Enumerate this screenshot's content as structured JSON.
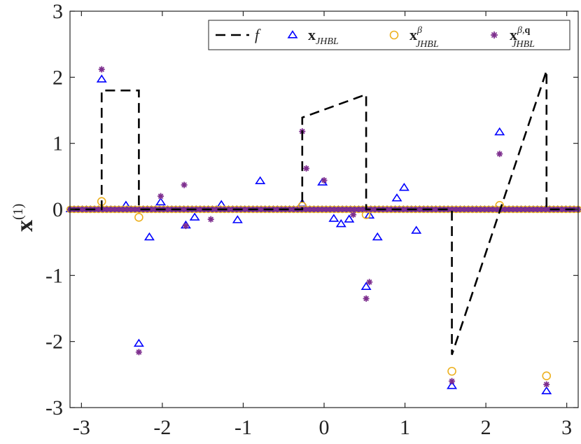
{
  "chart_data": {
    "type": "scatter",
    "ylabel": "x(1)",
    "ylabel_base": "x",
    "ylabel_sup": "(1)",
    "xlim": [
      -3.1416,
      3.1416
    ],
    "ylim": [
      -3,
      3
    ],
    "x_ticks": [
      -3,
      -2,
      -1,
      0,
      1,
      2,
      3
    ],
    "x_tick_labels": [
      "-3",
      "-2",
      "-1",
      "0",
      "1",
      "2",
      "3"
    ],
    "y_ticks": [
      -3,
      -2,
      -1,
      0,
      1,
      2,
      3
    ],
    "y_tick_labels": [
      "-3",
      "-2",
      "-1",
      "0",
      "1",
      "2",
      "3"
    ],
    "grid": false,
    "legend_position": "top-right",
    "legend": {
      "f": "f",
      "x_base": "x",
      "x_sub": "JHBL",
      "beta": "β",
      "beta_q": "β,",
      "q": "q"
    },
    "colors": {
      "f": "#000000",
      "x_JHBL": "#0000ff",
      "x_beta": "#edb120",
      "x_beta_q": "#7e2f8e",
      "axis": "#262626"
    },
    "series": [
      {
        "key": "f",
        "style": "dashed-line",
        "segments": [
          [
            [
              -3.14,
              0
            ],
            [
              -2.75,
              0
            ],
            [
              -2.75,
              1.8
            ],
            [
              -2.29,
              1.8
            ],
            [
              -2.29,
              0
            ],
            [
              -0.27,
              0
            ],
            [
              -0.27,
              1.39
            ],
            [
              0.52,
              1.74
            ],
            [
              0.52,
              0
            ],
            [
              1.58,
              0
            ],
            [
              1.58,
              -2.2
            ],
            [
              2.75,
              2.1
            ],
            [
              2.75,
              0
            ],
            [
              3.14,
              0
            ]
          ]
        ]
      },
      {
        "key": "x_JHBL",
        "style": "triangle",
        "outliers": [
          [
            -2.75,
            1.97
          ],
          [
            -2.29,
            -2.03
          ],
          [
            -2.16,
            -0.42
          ],
          [
            -2.02,
            0.11
          ],
          [
            -1.6,
            -0.12
          ],
          [
            -1.71,
            -0.24
          ],
          [
            -1.27,
            0.07
          ],
          [
            -0.79,
            0.43
          ],
          [
            -1.07,
            -0.16
          ],
          [
            -2.45,
            0.06
          ],
          [
            -0.27,
            0.09
          ],
          [
            -0.02,
            0.41
          ],
          [
            0.12,
            -0.14
          ],
          [
            0.21,
            -0.22
          ],
          [
            0.31,
            -0.15
          ],
          [
            0.52,
            -1.17
          ],
          [
            0.56,
            -0.09
          ],
          [
            0.66,
            -0.42
          ],
          [
            0.9,
            0.17
          ],
          [
            0.99,
            0.33
          ],
          [
            1.14,
            -0.32
          ],
          [
            1.58,
            -2.67
          ],
          [
            2.17,
            1.17
          ],
          [
            2.75,
            -2.75
          ]
        ]
      },
      {
        "key": "x_beta",
        "style": "circle",
        "outliers": [
          [
            -2.75,
            0.12
          ],
          [
            -2.29,
            -0.12
          ],
          [
            -0.27,
            0.05
          ],
          [
            0.52,
            -0.08
          ],
          [
            1.58,
            -2.45
          ],
          [
            2.17,
            0.06
          ],
          [
            2.75,
            -2.52
          ]
        ]
      },
      {
        "key": "x_beta_q",
        "style": "star",
        "outliers": [
          [
            -2.75,
            2.12
          ],
          [
            -2.29,
            -2.16
          ],
          [
            -2.02,
            0.2
          ],
          [
            -1.73,
            0.37
          ],
          [
            -1.71,
            -0.25
          ],
          [
            -1.4,
            -0.15
          ],
          [
            -0.27,
            1.18
          ],
          [
            -0.22,
            0.62
          ],
          [
            0,
            0.44
          ],
          [
            0.36,
            -0.08
          ],
          [
            0.52,
            -1.35
          ],
          [
            0.56,
            -1.1
          ],
          [
            1.58,
            -2.6
          ],
          [
            2.17,
            0.84
          ],
          [
            2.75,
            -2.65
          ]
        ]
      }
    ],
    "baseline": {
      "x_start": -3.14,
      "x_end": 3.14,
      "count": 126,
      "value": 0
    }
  }
}
